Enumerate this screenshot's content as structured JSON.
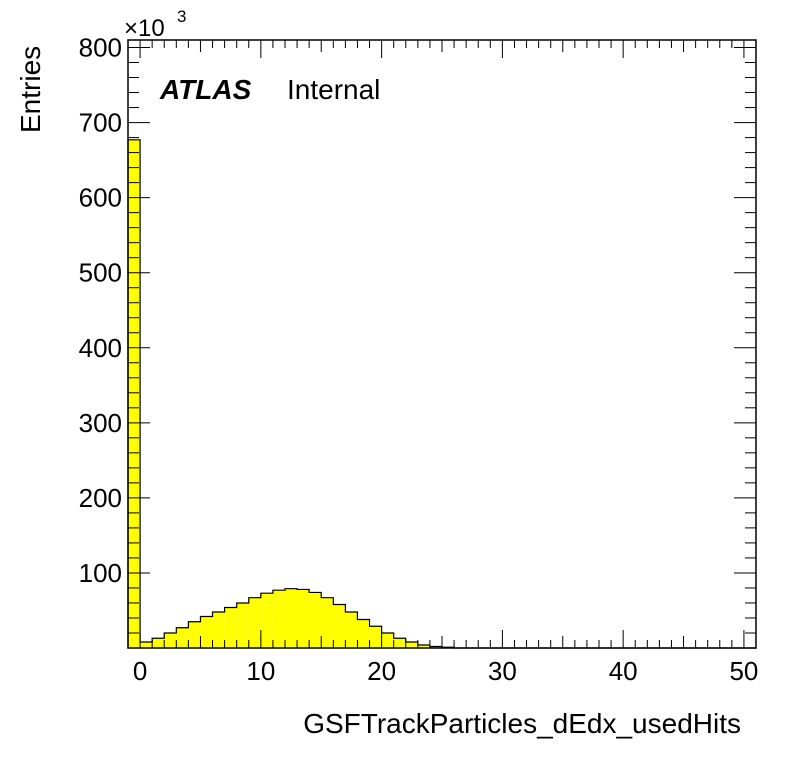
{
  "chart_data": {
    "type": "bar",
    "histogram": true,
    "xlabel": "GSFTrackParticles_dEdx_usedHits",
    "ylabel": "Entries",
    "y_multiplier": {
      "base": "×10",
      "exponent": "3"
    },
    "atlas_label": {
      "bold": "ATLAS",
      "tag": "Internal"
    },
    "xlim": [
      -1,
      51
    ],
    "ylim": [
      0,
      810
    ],
    "x_ticks": [
      0,
      10,
      20,
      30,
      40,
      50
    ],
    "y_ticks": [
      100,
      200,
      300,
      400,
      500,
      600,
      700,
      800
    ],
    "bin_width": 1,
    "bin_edges_start": -1,
    "values": [
      677,
      8,
      13,
      20,
      27,
      35,
      42,
      48,
      54,
      60,
      67,
      73,
      77,
      79,
      78,
      74,
      67,
      58,
      48,
      38,
      29,
      20,
      13,
      8,
      4,
      2,
      1,
      0,
      0,
      0,
      0,
      0,
      0,
      0,
      0,
      0,
      0,
      0,
      0,
      0,
      0,
      0,
      0,
      0,
      0,
      0,
      0,
      0,
      0,
      0,
      0,
      0
    ],
    "fill_color": "#ffff00",
    "line_color": "#000000",
    "grid": false
  }
}
